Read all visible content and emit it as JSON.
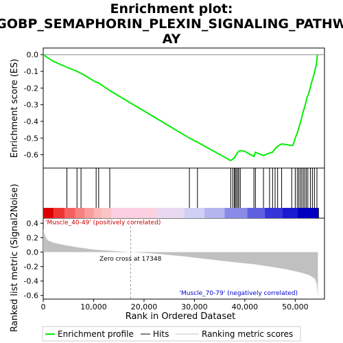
{
  "chart_data": {
    "type": "line",
    "title_lines": [
      "Enrichment plot:",
      "GOBP_SEMAPHORIN_PLEXIN_SIGNALING_PATHW",
      "AY"
    ],
    "es_panel": {
      "ylabel": "Enrichment score (ES)",
      "ylim": [
        -0.68,
        0.04
      ],
      "yticks": [
        0.0,
        -0.1,
        -0.2,
        -0.3,
        -0.4,
        -0.5,
        -0.6
      ],
      "ytick_labels": [
        "0.0",
        "-0.1",
        "-0.2",
        "-0.3",
        "-0.4",
        "-0.5",
        "-0.6"
      ],
      "zero_line": true,
      "series": [
        {
          "name": "Enrichment profile",
          "color": "#00ee00",
          "x": [
            0,
            2000,
            4700,
            6700,
            8000,
            10500,
            11000,
            13200,
            29000,
            30600,
            37200,
            37600,
            37900,
            38100,
            38300,
            38600,
            39000,
            40000,
            41800,
            42100,
            43700,
            44900,
            45500,
            46000,
            46500,
            47300,
            49500,
            50000,
            50400,
            50700,
            51000,
            51300,
            51600,
            52000,
            52300,
            52700,
            53200,
            53700,
            54200,
            54400
          ],
          "y": [
            0.0,
            -0.04,
            -0.075,
            -0.1,
            -0.12,
            -0.165,
            -0.17,
            -0.215,
            -0.5,
            -0.525,
            -0.635,
            -0.625,
            -0.62,
            -0.61,
            -0.6,
            -0.585,
            -0.575,
            -0.58,
            -0.61,
            -0.585,
            -0.605,
            -0.59,
            -0.585,
            -0.565,
            -0.55,
            -0.535,
            -0.545,
            -0.5,
            -0.47,
            -0.44,
            -0.41,
            -0.375,
            -0.34,
            -0.3,
            -0.26,
            -0.23,
            -0.17,
            -0.12,
            -0.06,
            0.0
          ]
        }
      ]
    },
    "hits_panel": {
      "hits": [
        4700,
        6700,
        7500,
        10500,
        11000,
        13200,
        29000,
        30600,
        37200,
        37600,
        37900,
        38100,
        38300,
        38600,
        38800,
        39100,
        41800,
        42100,
        43700,
        44900,
        45500,
        46000,
        46500,
        47300,
        49300,
        50000,
        50400,
        50700,
        51000,
        51300,
        51600,
        51900,
        52200,
        52500,
        53000,
        53400,
        53800,
        54300
      ]
    },
    "rank_colorbar": {
      "colors": [
        "#dd0000",
        "#ee3333",
        "#f56060",
        "#f88080",
        "#fa9d9d",
        "#fbb5b5",
        "#fcc5c5",
        "#fcd0e0",
        "#e8d8f2",
        "#d0d0f5",
        "#b4b4f0",
        "#8a8ae8",
        "#6060e0",
        "#3535d8",
        "#1a1ad0",
        "#0000c0"
      ],
      "stops": [
        0,
        2000,
        4200,
        6300,
        8200,
        10000,
        11500,
        13500,
        22500,
        28000,
        32000,
        36000,
        40500,
        44000,
        47500,
        50500,
        54600
      ]
    },
    "metric_panel": {
      "ylabel": "Ranked list metric (Signal2Noise)",
      "ylim": [
        -0.65,
        0.47
      ],
      "yticks": [
        0.4,
        0.2,
        0.0,
        -0.2,
        -0.4,
        -0.6
      ],
      "ytick_labels": [
        "0.4",
        "0.2",
        "0.0",
        "-0.2",
        "-0.4",
        "-0.6"
      ],
      "fill_color": "#c0c0c0",
      "x": [
        0,
        200,
        500,
        1000,
        2000,
        4000,
        7000,
        10000,
        14000,
        17348,
        22000,
        28000,
        33000,
        38000,
        42000,
        45000,
        48000,
        50000,
        51500,
        52500,
        53300,
        53900,
        54300,
        54500
      ],
      "y": [
        0.32,
        0.26,
        0.2,
        0.16,
        0.13,
        0.1,
        0.065,
        0.035,
        0.015,
        0.0,
        -0.02,
        -0.06,
        -0.1,
        -0.14,
        -0.17,
        -0.2,
        -0.235,
        -0.265,
        -0.29,
        -0.31,
        -0.34,
        -0.37,
        -0.45,
        -0.62
      ],
      "zero_cross_label": "Zero cross at 17348",
      "zero_cross_x": 17348,
      "pos_label": "'Muscle_40-49' (positively correlated)",
      "neg_label": "'Muscle_70-79' (negatively correlated)"
    },
    "x_axis": {
      "label": "Rank in Ordered Dataset",
      "xlim": [
        0,
        55800
      ],
      "ticks": [
        0,
        10000,
        20000,
        30000,
        40000,
        50000
      ],
      "tick_labels": [
        "0",
        "10,000",
        "20,000",
        "30,000",
        "40,000",
        "50,000"
      ]
    },
    "legend": {
      "placement": "bottom",
      "items": [
        {
          "label": "Enrichment profile",
          "color": "#00ee00",
          "kind": "line"
        },
        {
          "label": "Hits",
          "color": "#000000",
          "kind": "line"
        },
        {
          "label": "Ranking metric scores",
          "color": "#c0c0c0",
          "kind": "line"
        }
      ]
    }
  }
}
